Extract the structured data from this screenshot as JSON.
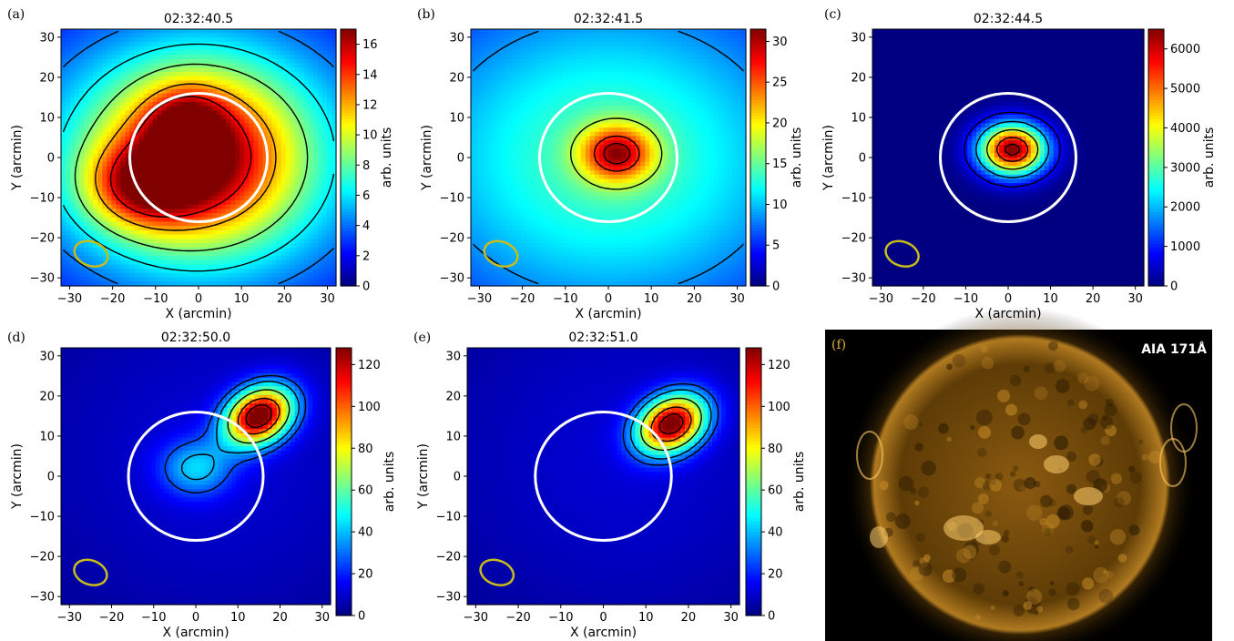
{
  "chart_data": [
    {
      "type": "heatmap",
      "panel_label": "(a)",
      "title": "02:32:40.5",
      "xlabel": "X (arcmin)",
      "ylabel": "Y (arcmin)",
      "xlim": [
        -32,
        32
      ],
      "ylim": [
        -32,
        32
      ],
      "xticks": [
        "-30",
        "-20",
        "-10",
        "0",
        "10",
        "20",
        "30"
      ],
      "yticks": [
        "-30",
        "-20",
        "-10",
        "0",
        "10",
        "20",
        "30"
      ],
      "colorbar": {
        "label": "arb. units",
        "min": 0,
        "max": 17,
        "ticks": [
          "0",
          "2",
          "4",
          "6",
          "8",
          "10",
          "12",
          "14",
          "16"
        ]
      },
      "sources": [
        {
          "x": -13,
          "y": -7,
          "sx": 9,
          "sy": 7,
          "peak": 0.4
        },
        {
          "x": -3,
          "y": 8,
          "sx": 6,
          "sy": 6,
          "peak": 0.3
        },
        {
          "x": 0,
          "y": 0,
          "sx": 15,
          "sy": 14,
          "peak": 0.62
        }
      ],
      "background": {
        "x": 0,
        "y": 0,
        "sx": 36,
        "sy": 30,
        "peak": 0.45
      },
      "contour_levels": [
        0.25,
        0.37,
        0.5,
        0.7,
        0.88
      ],
      "white_circle": {
        "x": 0,
        "y": 0,
        "r": 16
      },
      "beam": {
        "x": -25,
        "y": -24,
        "a": 4,
        "b": 3
      }
    },
    {
      "type": "heatmap",
      "panel_label": "(b)",
      "title": "02:32:41.5",
      "xlabel": "X (arcmin)",
      "ylabel": "Y (arcmin)",
      "xlim": [
        -32,
        32
      ],
      "ylim": [
        -32,
        32
      ],
      "xticks": [
        "-30",
        "-20",
        "-10",
        "0",
        "10",
        "20",
        "30"
      ],
      "yticks": [
        "-30",
        "-20",
        "-10",
        "0",
        "10",
        "20",
        "30"
      ],
      "colorbar": {
        "label": "arb. units",
        "min": 0,
        "max": 31.5,
        "ticks": [
          "0",
          "5",
          "10",
          "15",
          "20",
          "25",
          "30"
        ]
      },
      "sources": [
        {
          "x": 2,
          "y": 1,
          "sx": 6,
          "sy": 5,
          "peak": 0.55
        }
      ],
      "background": {
        "x": 0,
        "y": 0,
        "sx": 40,
        "sy": 34,
        "peak": 0.45
      },
      "contour_levels": [
        0.18,
        0.27,
        0.55,
        0.82,
        0.93
      ],
      "white_circle": {
        "x": 0,
        "y": 0,
        "r": 16
      },
      "beam": {
        "x": -25,
        "y": -24,
        "a": 4,
        "b": 3
      }
    },
    {
      "type": "heatmap",
      "panel_label": "(c)",
      "title": "02:32:44.5",
      "xlabel": "X (arcmin)",
      "ylabel": "Y (arcmin)",
      "xlim": [
        -32,
        32
      ],
      "ylim": [
        -32,
        32
      ],
      "xticks": [
        "-30",
        "-20",
        "-10",
        "0",
        "10",
        "20",
        "30"
      ],
      "yticks": [
        "-30",
        "-20",
        "-10",
        "0",
        "10",
        "20",
        "30"
      ],
      "colorbar": {
        "label": "arb. units",
        "min": 0,
        "max": 6500,
        "ticks": [
          "0",
          "1000",
          "2000",
          "3000",
          "4000",
          "5000",
          "6000"
        ]
      },
      "sources": [
        {
          "x": 1,
          "y": 2,
          "sx": 5.5,
          "sy": 4.5,
          "peak": 1.0
        }
      ],
      "background": {
        "x": 0,
        "y": 0,
        "sx": 30,
        "sy": 30,
        "peak": 0.0
      },
      "contour_levels": [
        0.12,
        0.3,
        0.55,
        0.8,
        0.95
      ],
      "white_circle": {
        "x": 0,
        "y": 0,
        "r": 16
      },
      "beam": {
        "x": -25,
        "y": -24,
        "a": 4,
        "b": 3
      }
    },
    {
      "type": "heatmap",
      "panel_label": "(d)",
      "title": "02:32:50.0",
      "xlabel": "X (arcmin)",
      "ylabel": "Y (arcmin)",
      "xlim": [
        -32,
        32
      ],
      "ylim": [
        -32,
        32
      ],
      "xticks": [
        "-30",
        "-20",
        "-10",
        "0",
        "10",
        "20",
        "30"
      ],
      "yticks": [
        "-30",
        "-20",
        "-10",
        "0",
        "10",
        "20",
        "30"
      ],
      "colorbar": {
        "label": "arb. units",
        "min": 0,
        "max": 128,
        "ticks": [
          "0",
          "20",
          "40",
          "60",
          "80",
          "100",
          "120"
        ]
      },
      "sources": [
        {
          "x": 15,
          "y": 15,
          "sx": 6,
          "sy": 4.5,
          "rot": -35,
          "peak": 1.0
        },
        {
          "x": 0,
          "y": 2,
          "sx": 6,
          "sy": 5,
          "peak": 0.26
        }
      ],
      "background": {
        "x": 5,
        "y": 5,
        "sx": 36,
        "sy": 36,
        "peak": 0.08
      },
      "contour_levels": [
        0.2,
        0.3,
        0.5,
        0.75,
        0.93
      ],
      "white_circle": {
        "x": 0,
        "y": 0,
        "r": 16
      },
      "beam": {
        "x": -25,
        "y": -24,
        "a": 4,
        "b": 3
      }
    },
    {
      "type": "heatmap",
      "panel_label": "(e)",
      "title": "02:32:51.0",
      "xlabel": "X (arcmin)",
      "ylabel": "Y (arcmin)",
      "xlim": [
        -32,
        32
      ],
      "ylim": [
        -32,
        32
      ],
      "xticks": [
        "-30",
        "-20",
        "-10",
        "0",
        "10",
        "20",
        "30"
      ],
      "yticks": [
        "-30",
        "-20",
        "-10",
        "0",
        "10",
        "20",
        "30"
      ],
      "colorbar": {
        "label": "arb. units",
        "min": 0,
        "max": 128,
        "ticks": [
          "0",
          "20",
          "40",
          "60",
          "80",
          "100",
          "120"
        ]
      },
      "sources": [
        {
          "x": 16,
          "y": 13,
          "sx": 6,
          "sy": 4.5,
          "rot": -35,
          "peak": 0.97
        }
      ],
      "background": {
        "x": 5,
        "y": 5,
        "sx": 36,
        "sy": 36,
        "peak": 0.08
      },
      "contour_levels": [
        0.2,
        0.3,
        0.5,
        0.75,
        0.93
      ],
      "white_circle": {
        "x": 0,
        "y": 0,
        "r": 16
      },
      "beam": {
        "x": -25,
        "y": -24,
        "a": 4,
        "b": 3
      }
    }
  ],
  "image_panel": {
    "panel_label": "(f)",
    "label": "AIA 171Å",
    "colors": {
      "sun_core": "#8a5a10",
      "sun_mid": "#5e3c06",
      "sun_edge": "#b07a20",
      "bright": "#ffd070",
      "background": "#000000"
    }
  },
  "colormap": "jet"
}
